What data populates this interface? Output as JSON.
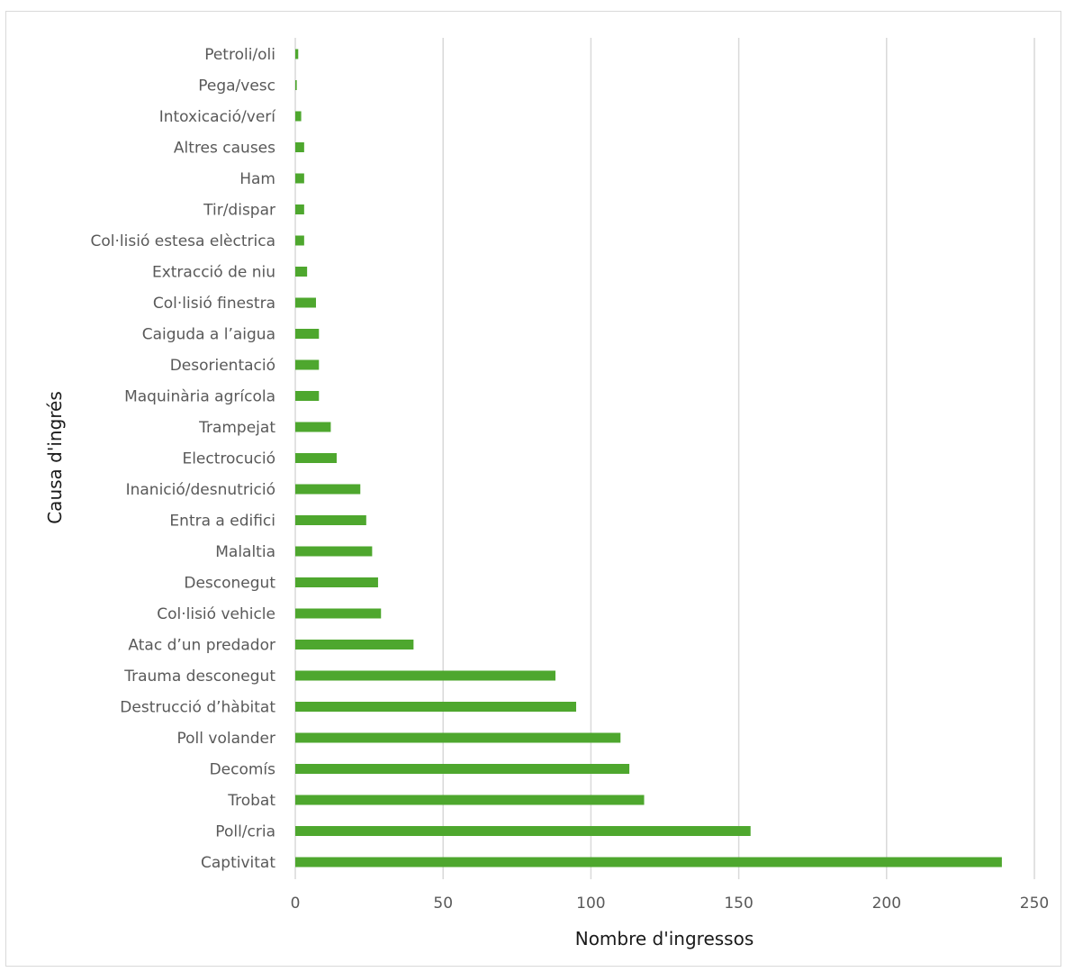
{
  "chart_data": {
    "type": "bar",
    "orientation": "horizontal",
    "xlabel": "Nombre d'ingressos",
    "ylabel": "Causa d'ingrés",
    "xlim": [
      0,
      250
    ],
    "xticks": [
      0,
      50,
      100,
      150,
      200,
      250
    ],
    "grid": "vertical",
    "bar_color": "#4ea72e",
    "categories": [
      "Petroli/oli",
      "Pega/vesc",
      "Intoxicació/verí",
      "Altres causes",
      "Ham",
      "Tir/dispar",
      "Col·lisió estesa elèctrica",
      "Extracció de niu",
      "Col·lisió finestra",
      "Caiguda a l’aigua",
      "Desorientació",
      "Maquinària agrícola",
      "Trampejat",
      "Electrocució",
      "Inanició/desnutrició",
      "Entra a edifici",
      "Malaltia",
      "Desconegut",
      "Col·lisió vehicle",
      "Atac d’un predador",
      "Trauma desconegut",
      "Destrucció d’hàbitat",
      "Poll volander",
      "Decomís",
      "Trobat",
      "Poll/cria",
      "Captivitat"
    ],
    "values": [
      1,
      0.5,
      2,
      3,
      3,
      3,
      3,
      4,
      7,
      8,
      8,
      8,
      12,
      14,
      22,
      24,
      26,
      28,
      29,
      40,
      88,
      95,
      110,
      113,
      118,
      154,
      239
    ]
  }
}
